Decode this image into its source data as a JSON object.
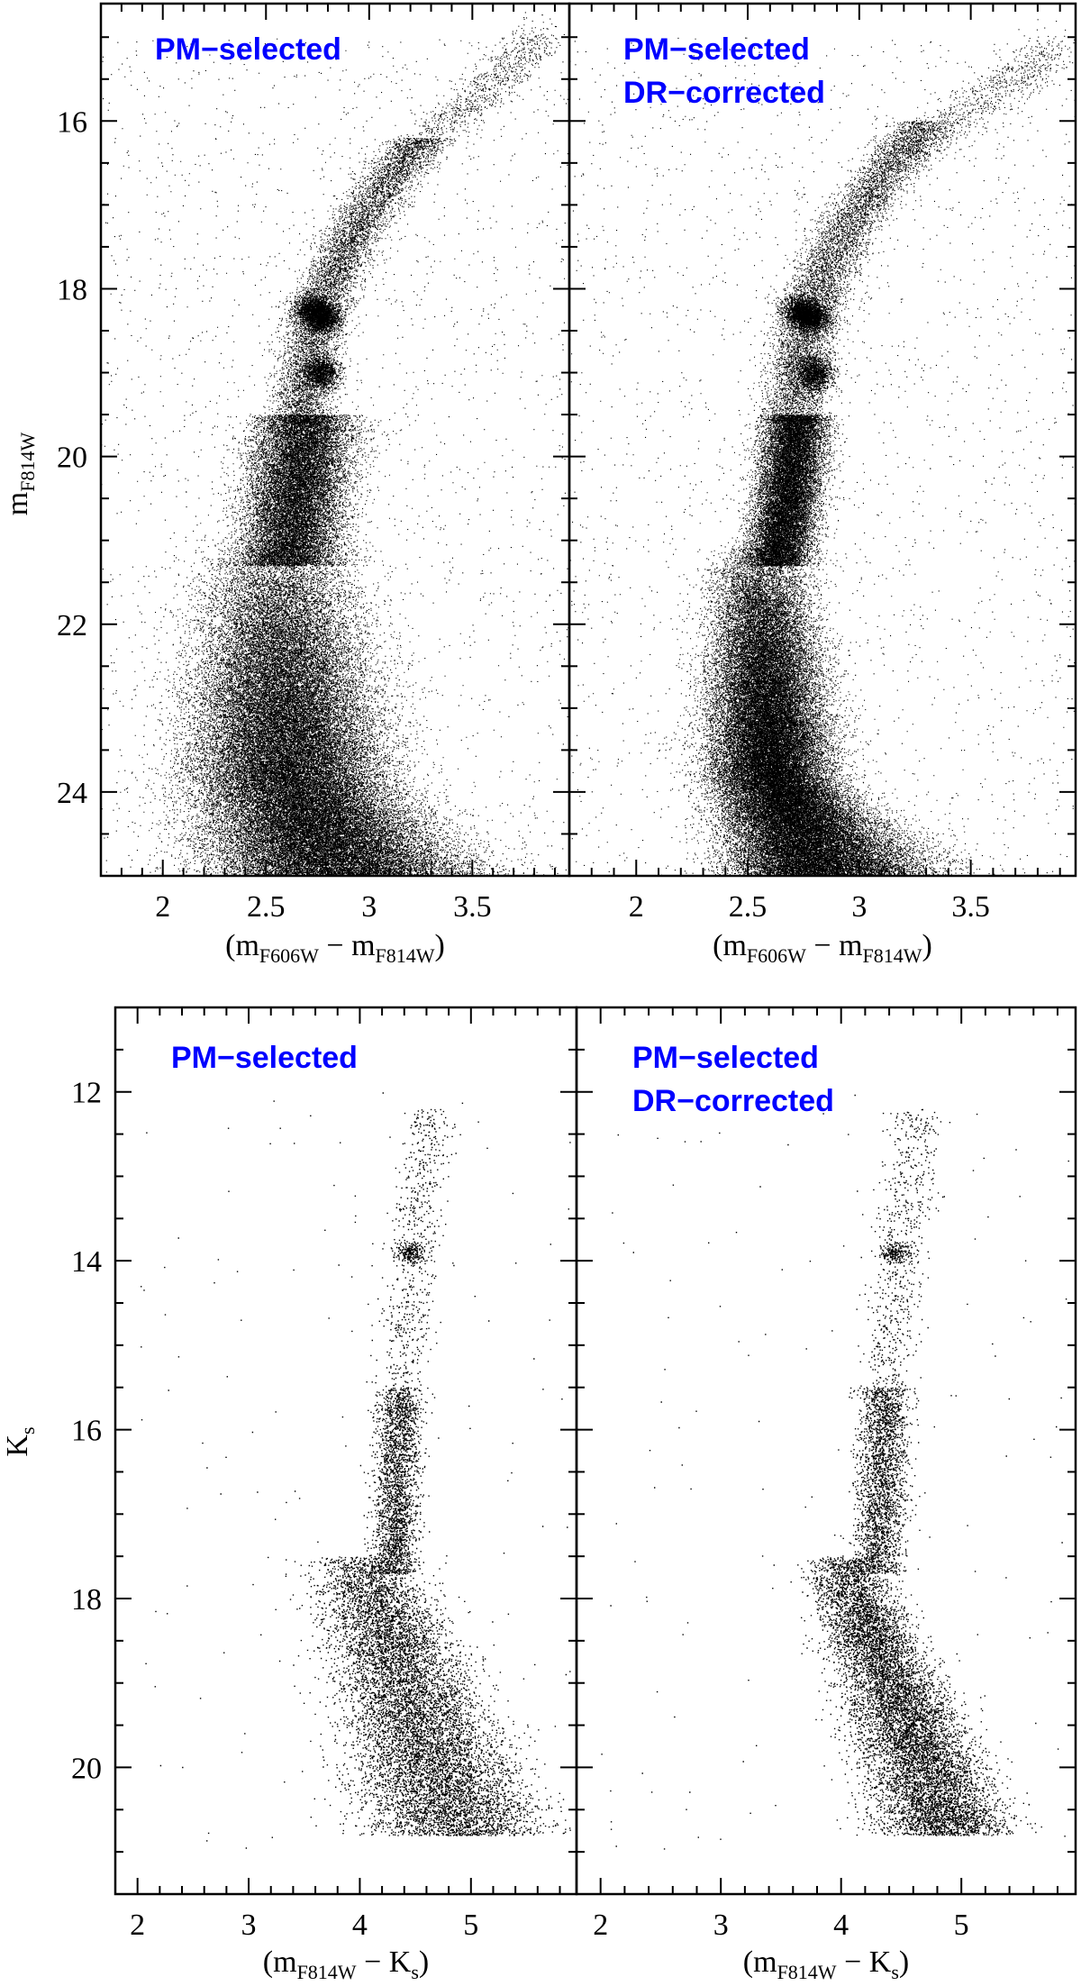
{
  "label_color": "#0000ff",
  "point_color": "#000000",
  "chart_data": [
    {
      "type": "scatter",
      "xlim": [
        1.7,
        3.97
      ],
      "ylim": [
        14.6,
        25.0
      ],
      "y_inverted": true,
      "xticks": [
        2,
        2.5,
        3,
        3.5
      ],
      "yticks": [
        16,
        18,
        20,
        22,
        24
      ],
      "xlabel": "(m_F606W − m_F814W)",
      "ylabel": "m_F814W",
      "panels": [
        {
          "labels": [
            "PM−selected"
          ],
          "features": {
            "ms_peak_color": 2.6,
            "ms_turnoff": 21.0,
            "ms_width": 0.17,
            "rgb_base_color": 2.62,
            "rgb_top": [
              3.25,
              16.2
            ],
            "red_clump": [
              2.75,
              18.3
            ],
            "rgb_bump": 19.0,
            "agb_tip": [
              3.85,
              15.0
            ],
            "point_count": 90000
          }
        },
        {
          "labels": [
            "PM−selected",
            "DR−corrected"
          ],
          "features": {
            "ms_peak_color": 2.6,
            "ms_turnoff": 21.0,
            "ms_width": 0.1,
            "rgb_base_color": 2.65,
            "rgb_top": [
              3.3,
              16.0
            ],
            "red_clump": [
              2.76,
              18.3
            ],
            "rgb_bump": 19.0,
            "agb_tip": [
              3.9,
              15.1
            ],
            "point_count": 90000
          }
        }
      ]
    },
    {
      "type": "scatter",
      "xlim": [
        1.8,
        5.95
      ],
      "ylim": [
        11.0,
        21.5
      ],
      "y_inverted": true,
      "xticks": [
        2,
        3,
        4,
        5
      ],
      "yticks": [
        12,
        14,
        16,
        18,
        20
      ],
      "xlabel": "(m_F814W − K_s)",
      "ylabel": "K_s",
      "panels": [
        {
          "labels": [
            "PM−selected"
          ],
          "features": {
            "ms_top": [
              4.0,
              17.5
            ],
            "ms_bottom": [
              4.9,
              20.8
            ],
            "ms_width": 0.22,
            "rgb_top": [
              4.6,
              12.2
            ],
            "red_clump": [
              4.45,
              13.9
            ],
            "point_count": 13000
          }
        },
        {
          "labels": [
            "PM−selected",
            "DR−corrected"
          ],
          "features": {
            "ms_top": [
              4.0,
              17.5
            ],
            "ms_bottom": [
              4.9,
              20.8
            ],
            "ms_width": 0.15,
            "rgb_top": [
              4.6,
              12.2
            ],
            "red_clump": [
              4.45,
              13.9
            ],
            "point_count": 13000
          }
        }
      ]
    }
  ]
}
